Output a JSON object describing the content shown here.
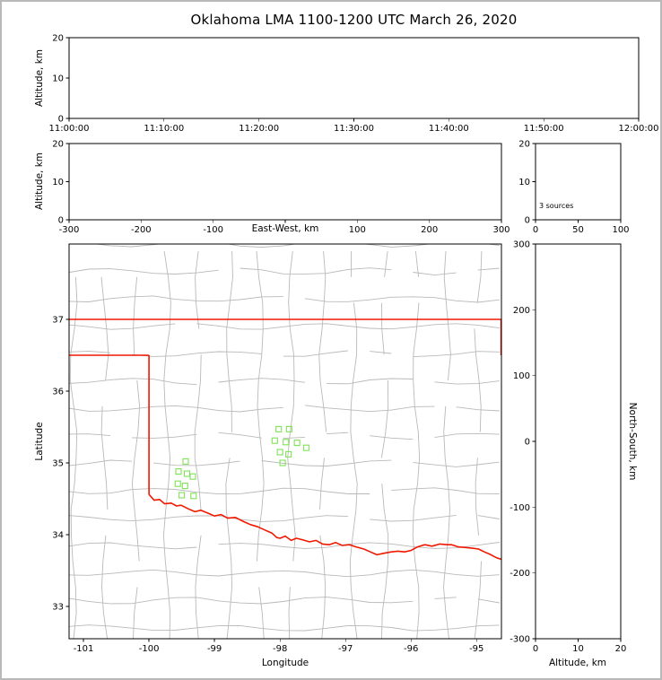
{
  "title": "Oklahoma LMA 1100-1200 UTC March 26, 2020",
  "chart_data": [
    {
      "id": "altitude-vs-time",
      "type": "scatter",
      "xlabel": "",
      "ylabel": "Altitude, km",
      "xtick_labels": [
        "11:00:00",
        "11:10:00",
        "11:20:00",
        "11:30:00",
        "11:40:00",
        "11:50:00",
        "12:00:00"
      ],
      "ylim": [
        0,
        20
      ],
      "yticks": [
        0,
        10,
        20
      ],
      "points": []
    },
    {
      "id": "altitude-vs-east-west",
      "type": "scatter",
      "xlabel": "East-West, km",
      "ylabel": "Altitude, km",
      "xlim": [
        -300,
        300
      ],
      "xticks": [
        -300,
        -200,
        -100,
        0,
        100,
        200,
        300
      ],
      "xtick_labels": [
        "-300",
        "-200",
        "-100",
        "",
        "100",
        "200",
        "300"
      ],
      "ylim": [
        0,
        20
      ],
      "yticks": [
        0,
        10,
        20
      ],
      "points": []
    },
    {
      "id": "altitude-histogram",
      "type": "histogram",
      "annotation": "3 sources",
      "xlim": [
        0,
        100
      ],
      "xticks": [
        0,
        50,
        100
      ],
      "ylim": [
        0,
        20
      ],
      "yticks": [
        0,
        10,
        20
      ],
      "points": []
    },
    {
      "id": "plan-view-map",
      "type": "scatter",
      "xlabel": "Longitude",
      "ylabel": "Latitude",
      "xlim": [
        -101.22,
        -94.62
      ],
      "xticks": [
        -101,
        -100,
        -99,
        -98,
        -97,
        -96,
        -95
      ],
      "ylim": [
        32.55,
        38.05
      ],
      "yticks": [
        33,
        34,
        35,
        36,
        37
      ],
      "station_marker": {
        "shape": "square",
        "color": "#7fe257",
        "size": 6,
        "filled": false
      },
      "stations": [
        [
          -98.02,
          35.47
        ],
        [
          -97.86,
          35.47
        ],
        [
          -98.08,
          35.31
        ],
        [
          -97.91,
          35.29
        ],
        [
          -97.74,
          35.28
        ],
        [
          -98.0,
          35.15
        ],
        [
          -97.87,
          35.12
        ],
        [
          -97.96,
          35.0
        ],
        [
          -97.6,
          35.21
        ],
        [
          -99.44,
          35.02
        ],
        [
          -99.55,
          34.88
        ],
        [
          -99.42,
          34.85
        ],
        [
          -99.33,
          34.81
        ],
        [
          -99.56,
          34.71
        ],
        [
          -99.45,
          34.68
        ],
        [
          -99.5,
          34.55
        ],
        [
          -99.32,
          34.54
        ]
      ],
      "county_lines": {
        "color": "#b9b9b9"
      },
      "state_boundary": {
        "color": "#f01800",
        "segments": [
          {
            "name": "kansas-oklahoma-border",
            "points": [
              [
                -101.22,
                37.0
              ],
              [
                -94.62,
                37.0
              ]
            ]
          },
          {
            "name": "panhandle-south-border",
            "points": [
              [
                -101.22,
                36.5
              ],
              [
                -100.0,
                36.5
              ]
            ]
          },
          {
            "name": "texas-100th-meridian-border",
            "points": [
              [
                -100.0,
                36.5
              ],
              [
                -100.0,
                34.56
              ]
            ]
          },
          {
            "name": "missouri-arkansas-border",
            "points": [
              [
                -94.625,
                37.0
              ],
              [
                -94.625,
                36.5
              ]
            ]
          },
          {
            "name": "red-river-border",
            "points": [
              [
                -100.0,
                34.56
              ],
              [
                -99.92,
                34.48
              ],
              [
                -99.84,
                34.49
              ],
              [
                -99.76,
                34.43
              ],
              [
                -99.66,
                34.44
              ],
              [
                -99.58,
                34.4
              ],
              [
                -99.51,
                34.41
              ],
              [
                -99.4,
                34.36
              ],
              [
                -99.3,
                34.32
              ],
              [
                -99.21,
                34.34
              ],
              [
                -99.1,
                34.3
              ],
              [
                -99.0,
                34.26
              ],
              [
                -98.9,
                34.28
              ],
              [
                -98.8,
                34.23
              ],
              [
                -98.68,
                34.24
              ],
              [
                -98.55,
                34.18
              ],
              [
                -98.45,
                34.14
              ],
              [
                -98.34,
                34.11
              ],
              [
                -98.22,
                34.06
              ],
              [
                -98.12,
                34.02
              ],
              [
                -98.05,
                33.96
              ],
              [
                -98.0,
                33.95
              ],
              [
                -97.92,
                33.98
              ],
              [
                -97.83,
                33.92
              ],
              [
                -97.75,
                33.95
              ],
              [
                -97.66,
                33.93
              ],
              [
                -97.55,
                33.9
              ],
              [
                -97.45,
                33.92
              ],
              [
                -97.35,
                33.87
              ],
              [
                -97.25,
                33.86
              ],
              [
                -97.15,
                33.89
              ],
              [
                -97.05,
                33.85
              ],
              [
                -96.94,
                33.86
              ],
              [
                -96.84,
                33.83
              ],
              [
                -96.72,
                33.8
              ],
              [
                -96.62,
                33.76
              ],
              [
                -96.52,
                33.72
              ],
              [
                -96.42,
                33.74
              ],
              [
                -96.3,
                33.76
              ],
              [
                -96.2,
                33.77
              ],
              [
                -96.1,
                33.76
              ],
              [
                -96.0,
                33.78
              ],
              [
                -95.9,
                33.83
              ],
              [
                -95.79,
                33.86
              ],
              [
                -95.68,
                33.84
              ],
              [
                -95.56,
                33.87
              ],
              [
                -95.45,
                33.86
              ],
              [
                -95.38,
                33.86
              ],
              [
                -95.28,
                33.83
              ],
              [
                -95.15,
                33.82
              ],
              [
                -95.05,
                33.81
              ],
              [
                -94.97,
                33.8
              ],
              [
                -94.88,
                33.76
              ],
              [
                -94.78,
                33.72
              ],
              [
                -94.7,
                33.68
              ],
              [
                -94.6,
                33.65
              ]
            ]
          }
        ]
      },
      "points": []
    },
    {
      "id": "altitude-vs-north-south",
      "type": "scatter",
      "xlabel": "Altitude, km",
      "ylabel": "North-South, km",
      "xlim": [
        0,
        20
      ],
      "xticks": [
        0,
        10,
        20
      ],
      "ylim": [
        -300,
        300
      ],
      "yticks": [
        -300,
        -200,
        -100,
        0,
        100,
        200,
        300
      ],
      "points": []
    }
  ]
}
